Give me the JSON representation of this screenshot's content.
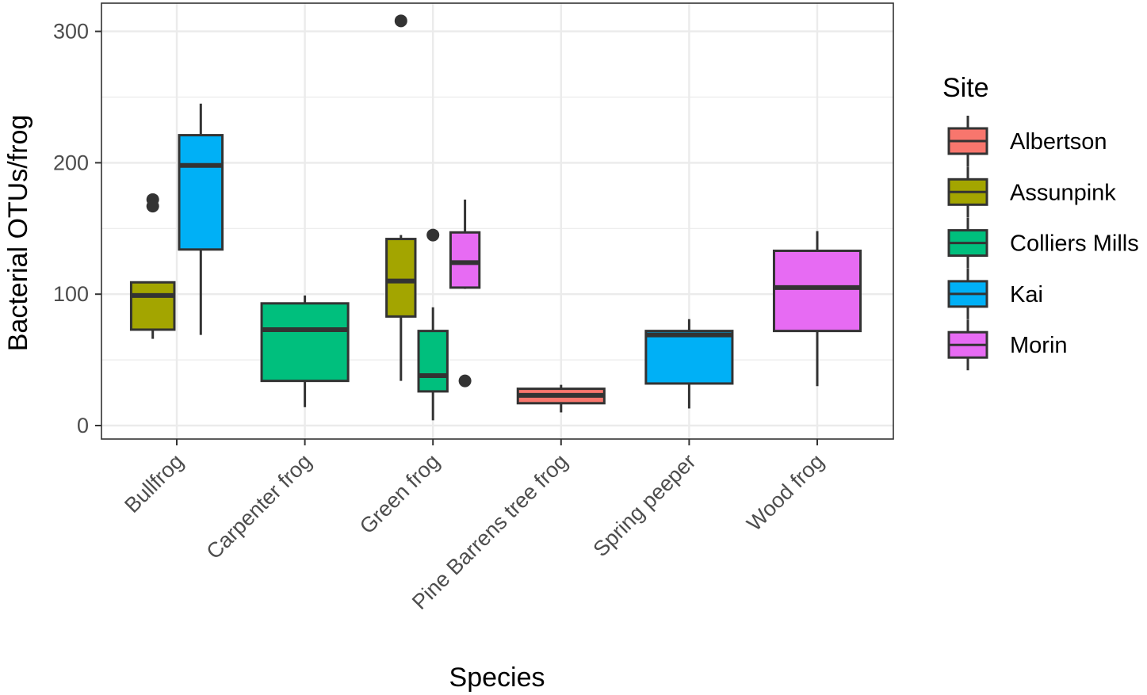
{
  "chart_data": {
    "type": "boxplot",
    "title": "",
    "xlabel": "Species",
    "ylabel": "Bacterial OTUs/frog",
    "ylim": [
      -10,
      323
    ],
    "yticks": [
      0,
      100,
      200,
      300
    ],
    "grid": true,
    "legend": {
      "title": "Site",
      "position": "right"
    },
    "categories": [
      "Bullfrog",
      "Carpenter frog",
      "Green frog",
      "Pine Barrens tree frog",
      "Spring peeper",
      "Wood frog"
    ],
    "sites": [
      {
        "name": "Albertson",
        "color": "#F8766D"
      },
      {
        "name": "Assunpink",
        "color": "#A3A500"
      },
      {
        "name": "Colliers Mills",
        "color": "#00BF7D"
      },
      {
        "name": "Kai",
        "color": "#00B0F6"
      },
      {
        "name": "Morin",
        "color": "#E76BF3"
      }
    ],
    "boxes": [
      {
        "category": "Bullfrog",
        "site": "Assunpink",
        "slot": 0,
        "slots": 2,
        "whisker_low": 66,
        "q1": 73,
        "median": 99,
        "q3": 109,
        "whisker_high": 109,
        "outliers": [
          172,
          167
        ]
      },
      {
        "category": "Bullfrog",
        "site": "Kai",
        "slot": 1,
        "slots": 2,
        "whisker_low": 69,
        "q1": 134,
        "median": 198,
        "q3": 221,
        "whisker_high": 245,
        "outliers": []
      },
      {
        "category": "Carpenter frog",
        "site": "Colliers Mills",
        "slot": 0,
        "slots": 1,
        "whisker_low": 14,
        "q1": 34,
        "median": 73,
        "q3": 93,
        "whisker_high": 99,
        "outliers": []
      },
      {
        "category": "Green frog",
        "site": "Assunpink",
        "slot": 0,
        "slots": 3,
        "whisker_low": 34,
        "q1": 83,
        "median": 110,
        "q3": 142,
        "whisker_high": 145,
        "outliers": [
          308
        ]
      },
      {
        "category": "Green frog",
        "site": "Colliers Mills",
        "slot": 1,
        "slots": 3,
        "whisker_low": 4,
        "q1": 26,
        "median": 38,
        "q3": 72,
        "whisker_high": 90,
        "outliers": [
          145
        ]
      },
      {
        "category": "Green frog",
        "site": "Morin",
        "slot": 2,
        "slots": 3,
        "whisker_low": 104,
        "q1": 105,
        "median": 124,
        "q3": 147,
        "whisker_high": 172,
        "outliers": [
          34
        ]
      },
      {
        "category": "Pine Barrens tree frog",
        "site": "Albertson",
        "slot": 0,
        "slots": 1,
        "whisker_low": 10,
        "q1": 17,
        "median": 23,
        "q3": 28,
        "whisker_high": 31,
        "outliers": []
      },
      {
        "category": "Spring peeper",
        "site": "Kai",
        "slot": 0,
        "slots": 1,
        "whisker_low": 13,
        "q1": 32,
        "median": 69,
        "q3": 72,
        "whisker_high": 81,
        "outliers": []
      },
      {
        "category": "Wood frog",
        "site": "Morin",
        "slot": 0,
        "slots": 1,
        "whisker_low": 30,
        "q1": 72,
        "median": 105,
        "q3": 133,
        "whisker_high": 148,
        "outliers": []
      }
    ]
  }
}
